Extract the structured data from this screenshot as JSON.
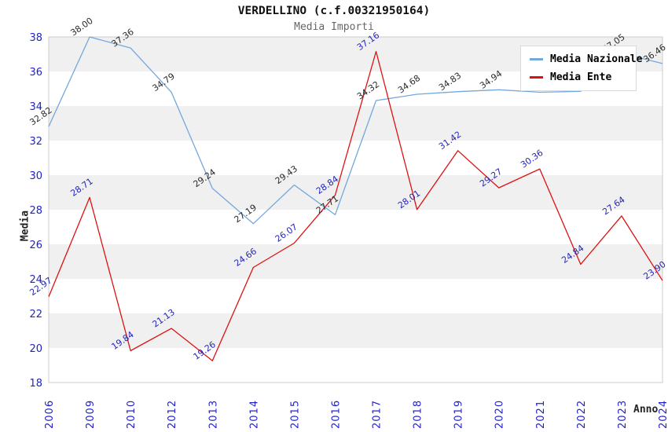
{
  "header": {
    "title": "VERDELLINO (c.f.00321950164)",
    "subtitle": "Media Importi"
  },
  "legend": {
    "items": [
      {
        "label": "Media Nazionale",
        "color": "#74a7db"
      },
      {
        "label": "Media Ente",
        "color": "#dd1111"
      }
    ]
  },
  "axes": {
    "x_label": "Anno",
    "y_label": "Media"
  },
  "chart_data": {
    "type": "line",
    "title": "VERDELLINO (c.f.00321950164)",
    "subtitle": "Media Importi",
    "xlabel": "Anno",
    "ylabel": "Media",
    "ylim": [
      18,
      38
    ],
    "y_ticks": [
      18,
      20,
      22,
      24,
      26,
      28,
      30,
      32,
      34,
      36,
      38
    ],
    "grid_bands": [
      [
        20,
        22
      ],
      [
        24,
        26
      ],
      [
        28,
        30
      ],
      [
        32,
        34
      ],
      [
        36,
        38
      ]
    ],
    "band_color": "#f0f0f0",
    "plot_border_color": "#cccccc",
    "tick_label_color": "#2222cc",
    "legend_position": "top-right",
    "categories": [
      "2006",
      "2009",
      "2010",
      "2012",
      "2013",
      "2014",
      "2015",
      "2016",
      "2017",
      "2018",
      "2019",
      "2020",
      "2021",
      "2022",
      "2023",
      "2024"
    ],
    "series": [
      {
        "name": "Media Nazionale",
        "color": "#74a7db",
        "label_color": "#2a2a2a",
        "values": [
          32.82,
          38.0,
          37.36,
          34.79,
          29.24,
          27.19,
          29.43,
          27.71,
          34.32,
          34.68,
          34.83,
          34.94,
          34.8,
          34.85,
          37.05,
          36.46
        ]
      },
      {
        "name": "Media Ente",
        "color": "#dd1111",
        "label_color": "#2525bb",
        "values": [
          22.97,
          28.71,
          19.84,
          21.13,
          19.26,
          24.66,
          26.07,
          28.84,
          37.16,
          28.01,
          31.42,
          29.27,
          30.36,
          24.84,
          27.64,
          23.9
        ]
      }
    ]
  }
}
